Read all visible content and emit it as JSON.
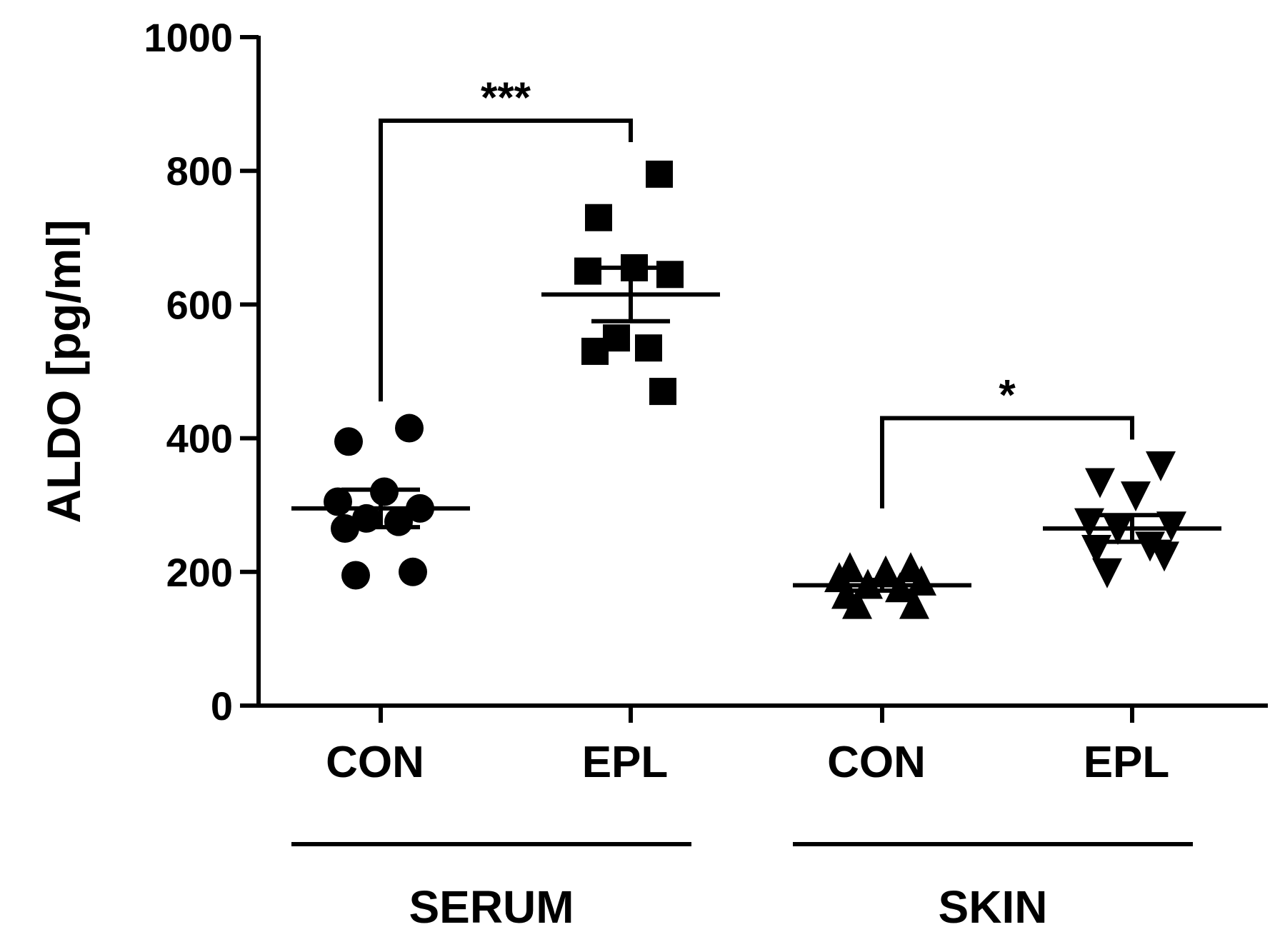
{
  "chart_data": {
    "type": "scatter",
    "ylabel": "ALDO [pg/ml]",
    "ylim": [
      0,
      1000
    ],
    "yticks": [
      0,
      200,
      400,
      600,
      800,
      1000
    ],
    "categories": [
      "CON",
      "EPL",
      "CON",
      "EPL"
    ],
    "groups": [
      {
        "label": "SERUM",
        "categories": [
          0,
          1
        ]
      },
      {
        "label": "SKIN",
        "categories": [
          2,
          3
        ]
      }
    ],
    "series": [
      {
        "category": "CON",
        "group": "SERUM",
        "marker": "circle",
        "values": [
          415,
          395,
          320,
          305,
          295,
          280,
          275,
          265,
          200,
          195
        ],
        "mean": 295,
        "sem": 28
      },
      {
        "category": "EPL",
        "group": "SERUM",
        "marker": "square",
        "values": [
          795,
          730,
          655,
          650,
          645,
          550,
          535,
          530,
          470
        ],
        "mean": 615,
        "sem": 40
      },
      {
        "category": "CON",
        "group": "SKIN",
        "marker": "triangle-up",
        "values": [
          205,
          205,
          200,
          190,
          185,
          180,
          175,
          165,
          150,
          150
        ],
        "mean": 180,
        "sem": 8
      },
      {
        "category": "EPL",
        "group": "SKIN",
        "marker": "triangle-down",
        "values": [
          360,
          335,
          315,
          275,
          270,
          265,
          240,
          235,
          225,
          200
        ],
        "mean": 265,
        "sem": 20
      }
    ],
    "comparisons": [
      {
        "from": 0,
        "to": 1,
        "label": "***",
        "y": 875
      },
      {
        "from": 2,
        "to": 3,
        "label": "*",
        "y": 430
      }
    ],
    "grid": false,
    "color": "#000000"
  }
}
